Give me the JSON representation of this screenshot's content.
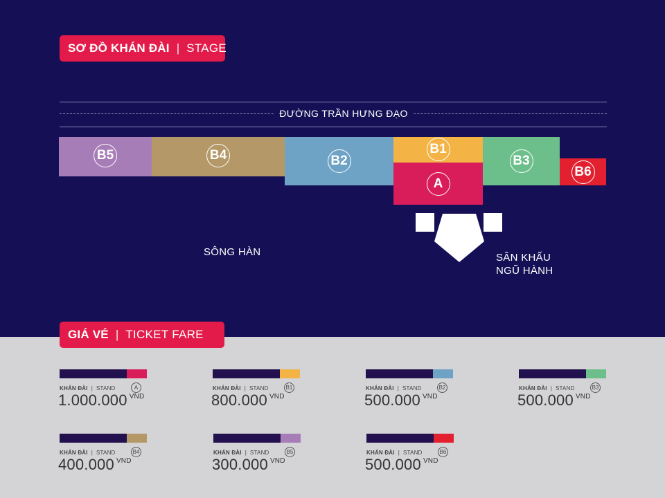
{
  "header": {
    "title_vn": "SƠ ĐỒ KHÁN ĐÀI",
    "separator": "|",
    "title_en": "STAGE"
  },
  "map": {
    "street": "ĐƯỜNG TRẦN HƯNG ĐẠO",
    "river": "SÔNG HÀN",
    "stage_line1": "SÂN KHẤU",
    "stage_line2": "NGŨ HÀNH",
    "sections": {
      "B5": {
        "label": "B5",
        "color": "#a77db7"
      },
      "B4": {
        "label": "B4",
        "color": "#b49868"
      },
      "B2": {
        "label": "B2",
        "color": "#6ea3c5"
      },
      "B1": {
        "label": "B1",
        "color": "#f3b345"
      },
      "A": {
        "label": "A",
        "color": "#d91c5a"
      },
      "B3": {
        "label": "B3",
        "color": "#6cbf8b"
      },
      "B6": {
        "label": "B6",
        "color": "#e2202f"
      }
    }
  },
  "fares": {
    "title_vn": "GIÁ VÉ",
    "separator": "|",
    "title_en": "TICKET FARE",
    "stand_vn": "KHÁN ĐÀI",
    "stand_sep": "|",
    "stand_en": "STAND",
    "currency": "VND",
    "items": [
      {
        "section": "A",
        "price": "1.000.000",
        "color": "#d91c5a"
      },
      {
        "section": "B1",
        "price": "800.000",
        "color": "#f3b345"
      },
      {
        "section": "B2",
        "price": "500.000",
        "color": "#6ea3c5"
      },
      {
        "section": "B3",
        "price": "500.000",
        "color": "#6cbf8b"
      },
      {
        "section": "B4",
        "price": "400.000",
        "color": "#b49868"
      },
      {
        "section": "B5",
        "price": "300.000",
        "color": "#a77db7"
      },
      {
        "section": "B6",
        "price": "500.000",
        "color": "#e2202f"
      }
    ]
  }
}
